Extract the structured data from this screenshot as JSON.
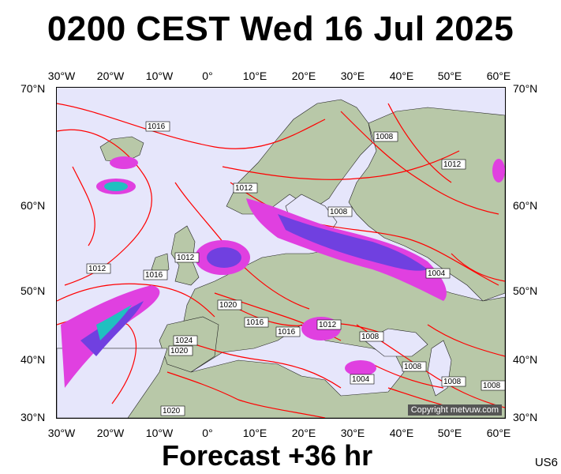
{
  "header": {
    "title": "0200 CEST Wed 16 Jul 2025"
  },
  "footer": {
    "forecast": "Forecast +36 hr",
    "code": "US6"
  },
  "map": {
    "copyright": "Copyright metvuw.com",
    "longitude_labels": [
      "30°W",
      "20°W",
      "10°W",
      "0°",
      "10°E",
      "20°E",
      "30°E",
      "40°E",
      "50°E",
      "60°E"
    ],
    "latitude_labels": [
      "70°N",
      "60°N",
      "50°N",
      "40°N",
      "30°N"
    ],
    "isobar_labels": [
      "1016",
      "1012",
      "1008",
      "1012",
      "1012",
      "1016",
      "1008",
      "1012",
      "1004",
      "1020",
      "1016",
      "1016",
      "1012",
      "1024",
      "1020",
      "1008",
      "1008",
      "1004",
      "1008",
      "1008",
      "1020"
    ],
    "colors": {
      "isobar": "#ff0000",
      "land": "#b8c8a8",
      "sea": "#e6e6fb",
      "rain_light": "#e040e0",
      "rain_medium": "#7040e0",
      "rain_heavy": "#20c0c0"
    }
  }
}
